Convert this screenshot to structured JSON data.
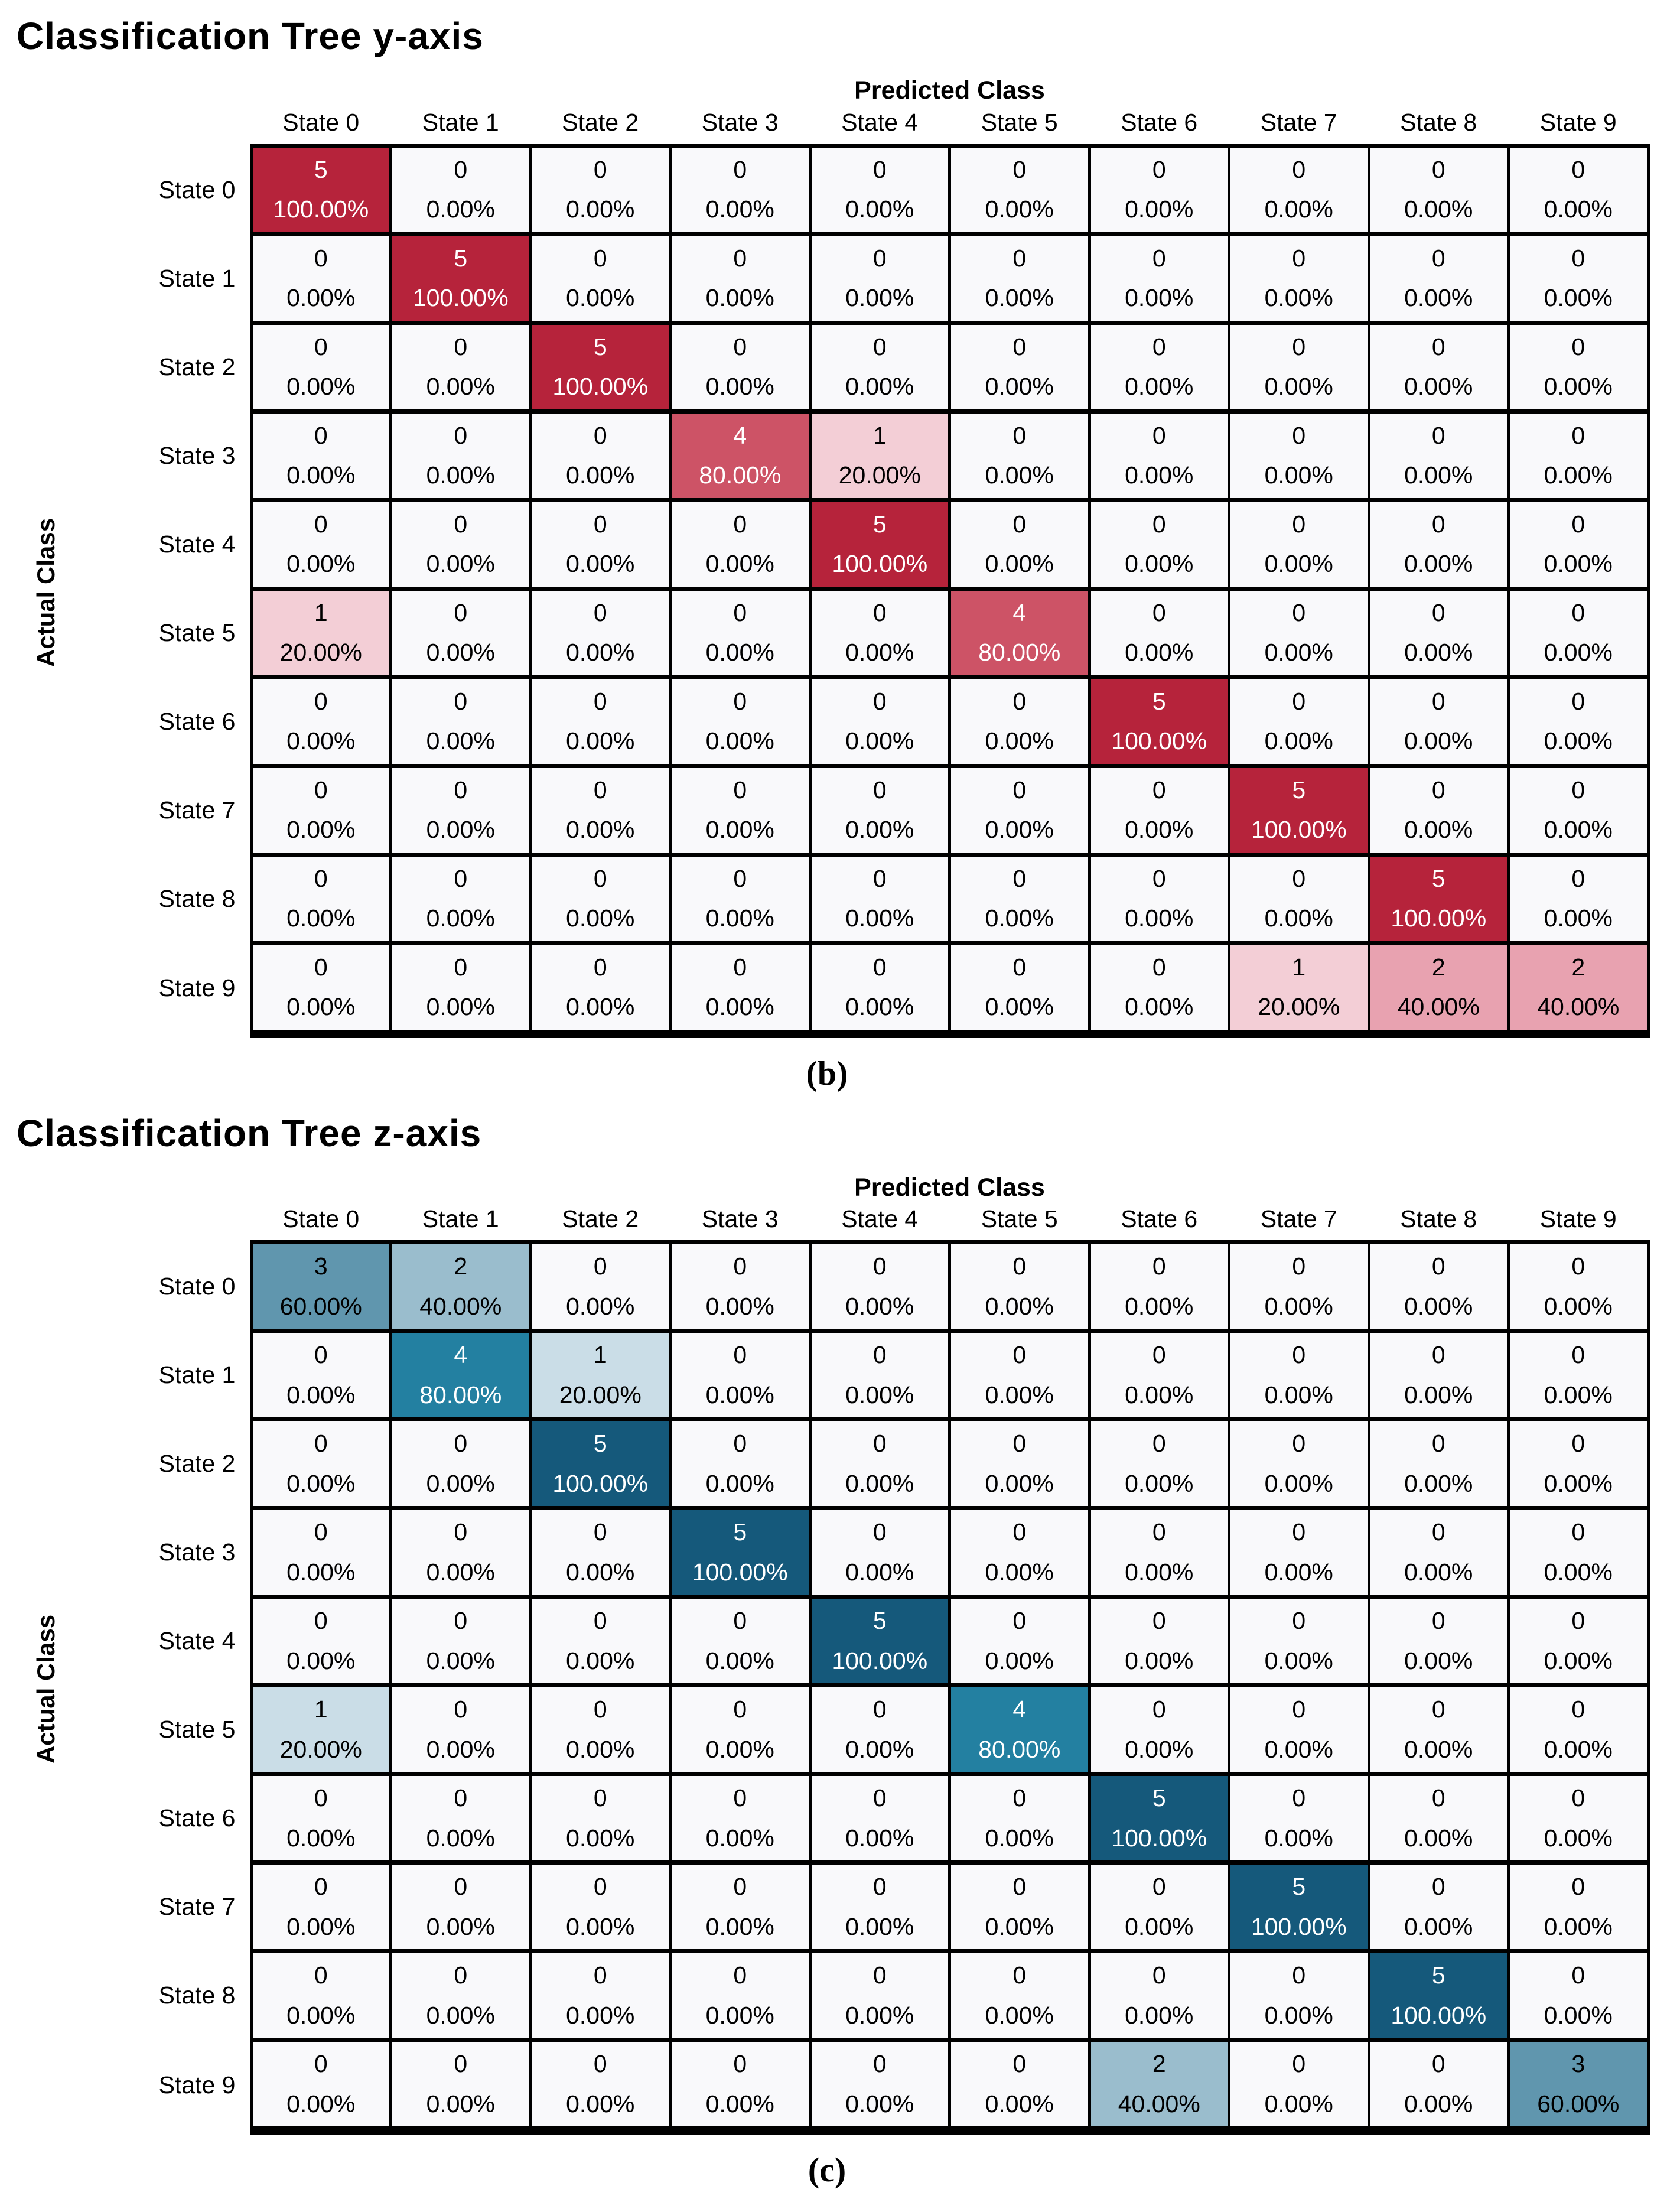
{
  "page": {
    "background": "#ffffff",
    "grid_border_color": "#000000",
    "zero_cell_color": "#f9f9fb"
  },
  "chart_data": [
    {
      "type": "heatmap",
      "title": "Classification Tree y-axis",
      "caption": "(b)",
      "xlabel": "Predicted Class",
      "ylabel": "Actual Class",
      "x_categories": [
        "State 0",
        "State 1",
        "State 2",
        "State 3",
        "State 4",
        "State 5",
        "State 6",
        "State 7",
        "State 8",
        "State 9"
      ],
      "y_categories": [
        "State 0",
        "State 1",
        "State 2",
        "State 3",
        "State 4",
        "State 5",
        "State 6",
        "State 7",
        "State 8",
        "State 9"
      ],
      "counts": [
        [
          5,
          0,
          0,
          0,
          0,
          0,
          0,
          0,
          0,
          0
        ],
        [
          0,
          5,
          0,
          0,
          0,
          0,
          0,
          0,
          0,
          0
        ],
        [
          0,
          0,
          5,
          0,
          0,
          0,
          0,
          0,
          0,
          0
        ],
        [
          0,
          0,
          0,
          4,
          1,
          0,
          0,
          0,
          0,
          0
        ],
        [
          0,
          0,
          0,
          0,
          5,
          0,
          0,
          0,
          0,
          0
        ],
        [
          1,
          0,
          0,
          0,
          0,
          4,
          0,
          0,
          0,
          0
        ],
        [
          0,
          0,
          0,
          0,
          0,
          0,
          5,
          0,
          0,
          0
        ],
        [
          0,
          0,
          0,
          0,
          0,
          0,
          0,
          5,
          0,
          0
        ],
        [
          0,
          0,
          0,
          0,
          0,
          0,
          0,
          0,
          5,
          0
        ],
        [
          0,
          0,
          0,
          0,
          0,
          0,
          0,
          1,
          2,
          2
        ]
      ],
      "percents": [
        [
          100,
          0,
          0,
          0,
          0,
          0,
          0,
          0,
          0,
          0
        ],
        [
          0,
          100,
          0,
          0,
          0,
          0,
          0,
          0,
          0,
          0
        ],
        [
          0,
          0,
          100,
          0,
          0,
          0,
          0,
          0,
          0,
          0
        ],
        [
          0,
          0,
          0,
          80,
          20,
          0,
          0,
          0,
          0,
          0
        ],
        [
          0,
          0,
          0,
          0,
          100,
          0,
          0,
          0,
          0,
          0
        ],
        [
          20,
          0,
          0,
          0,
          0,
          80,
          0,
          0,
          0,
          0
        ],
        [
          0,
          0,
          0,
          0,
          0,
          0,
          100,
          0,
          0,
          0
        ],
        [
          0,
          0,
          0,
          0,
          0,
          0,
          0,
          100,
          0,
          0
        ],
        [
          0,
          0,
          0,
          0,
          0,
          0,
          0,
          0,
          100,
          0
        ],
        [
          0,
          0,
          0,
          0,
          0,
          0,
          0,
          20,
          40,
          40
        ]
      ],
      "palette": {
        "0": "#f9f9fb",
        "20": "#f3ced6",
        "40": "#e8a2b0",
        "80": "#cd5366",
        "100": "#b6233b"
      },
      "light_text_percents": [
        80,
        100
      ],
      "cell_text_dark": "#000000",
      "cell_text_light": "#ffffff"
    },
    {
      "type": "heatmap",
      "title": "Classification Tree z-axis",
      "caption": "(c)",
      "xlabel": "Predicted Class",
      "ylabel": "Actual Class",
      "x_categories": [
        "State 0",
        "State 1",
        "State 2",
        "State 3",
        "State 4",
        "State 5",
        "State 6",
        "State 7",
        "State 8",
        "State 9"
      ],
      "y_categories": [
        "State 0",
        "State 1",
        "State 2",
        "State 3",
        "State 4",
        "State 5",
        "State 6",
        "State 7",
        "State 8",
        "State 9"
      ],
      "counts": [
        [
          3,
          2,
          0,
          0,
          0,
          0,
          0,
          0,
          0,
          0
        ],
        [
          0,
          4,
          1,
          0,
          0,
          0,
          0,
          0,
          0,
          0
        ],
        [
          0,
          0,
          5,
          0,
          0,
          0,
          0,
          0,
          0,
          0
        ],
        [
          0,
          0,
          0,
          5,
          0,
          0,
          0,
          0,
          0,
          0
        ],
        [
          0,
          0,
          0,
          0,
          5,
          0,
          0,
          0,
          0,
          0
        ],
        [
          1,
          0,
          0,
          0,
          0,
          4,
          0,
          0,
          0,
          0
        ],
        [
          0,
          0,
          0,
          0,
          0,
          0,
          5,
          0,
          0,
          0
        ],
        [
          0,
          0,
          0,
          0,
          0,
          0,
          0,
          5,
          0,
          0
        ],
        [
          0,
          0,
          0,
          0,
          0,
          0,
          0,
          0,
          5,
          0
        ],
        [
          0,
          0,
          0,
          0,
          0,
          0,
          2,
          0,
          0,
          3
        ]
      ],
      "percents": [
        [
          60,
          40,
          0,
          0,
          0,
          0,
          0,
          0,
          0,
          0
        ],
        [
          0,
          80,
          20,
          0,
          0,
          0,
          0,
          0,
          0,
          0
        ],
        [
          0,
          0,
          100,
          0,
          0,
          0,
          0,
          0,
          0,
          0
        ],
        [
          0,
          0,
          0,
          100,
          0,
          0,
          0,
          0,
          0,
          0
        ],
        [
          0,
          0,
          0,
          0,
          100,
          0,
          0,
          0,
          0,
          0
        ],
        [
          20,
          0,
          0,
          0,
          0,
          80,
          0,
          0,
          0,
          0
        ],
        [
          0,
          0,
          0,
          0,
          0,
          0,
          100,
          0,
          0,
          0
        ],
        [
          0,
          0,
          0,
          0,
          0,
          0,
          0,
          100,
          0,
          0
        ],
        [
          0,
          0,
          0,
          0,
          0,
          0,
          0,
          0,
          100,
          0
        ],
        [
          0,
          0,
          0,
          0,
          0,
          0,
          40,
          0,
          0,
          60
        ]
      ],
      "palette": {
        "0": "#f9f9fb",
        "20": "#cadde7",
        "40": "#9abdcd",
        "60": "#6096ae",
        "80": "#2380a1",
        "100": "#15597b"
      },
      "light_text_percents": [
        80,
        100
      ],
      "cell_text_dark": "#000000",
      "cell_text_light": "#ffffff"
    }
  ]
}
